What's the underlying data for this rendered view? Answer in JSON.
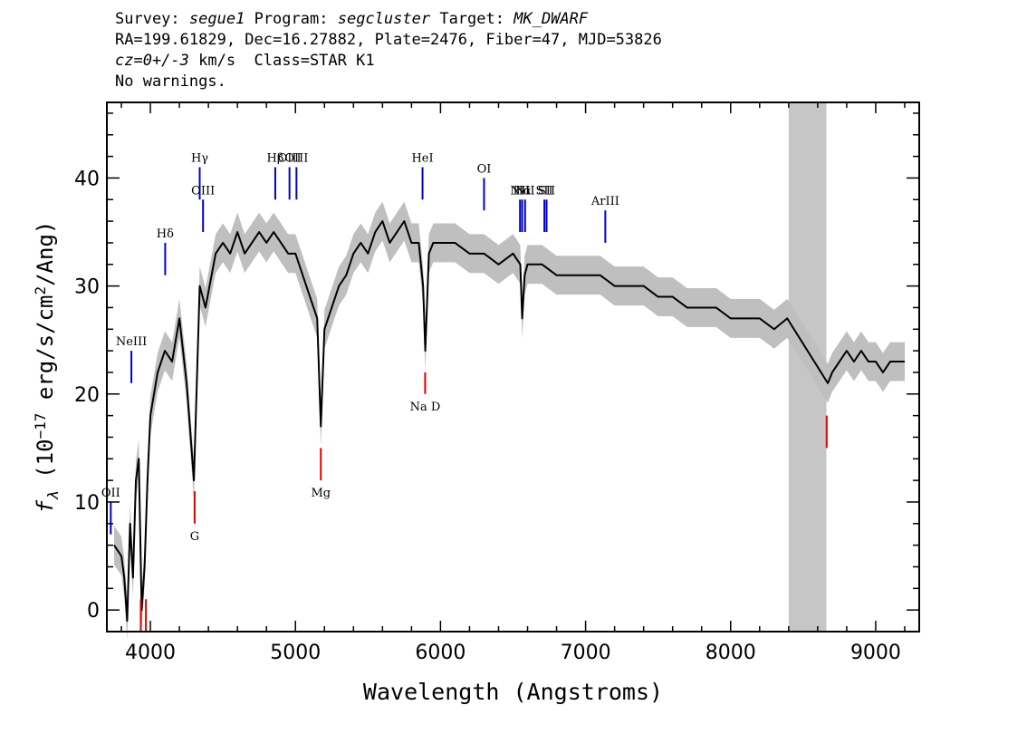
{
  "header": {
    "survey_label": "Survey:",
    "survey": "segue1",
    "program_label": "Program:",
    "program": "segcluster",
    "target_label": "Target:",
    "target": "MK_DWARF",
    "line2": "RA=199.61829, Dec=16.27882, Plate=2476, Fiber=47, MJD=53826",
    "cz": "cz=0+/-3",
    "line3_rest": " km/s  Class=STAR K1",
    "line4": "No warnings."
  },
  "chart_data": {
    "type": "line",
    "xlabel": "Wavelength (Angstroms)",
    "ylabel": "f_λ (10^-17 erg/s/cm^2/Ang)",
    "xlim": [
      3700,
      9300
    ],
    "ylim": [
      -2,
      47
    ],
    "xticks": [
      4000,
      5000,
      6000,
      7000,
      8000,
      9000
    ],
    "yticks": [
      0,
      10,
      20,
      30,
      40
    ],
    "masked_region": [
      8400,
      8660
    ],
    "colors": {
      "flux": "#000000",
      "error_band": "#bfbfbf",
      "mask": "#c6c6c6",
      "emission": "#0000cc",
      "absorption": "#dd0000"
    },
    "series": [
      {
        "x": [
          3750,
          3800,
          3820,
          3840,
          3860,
          3880,
          3900,
          3920,
          3940,
          3960,
          3980,
          4000,
          4050,
          4100,
          4150,
          4200,
          4250,
          4300,
          4340,
          4380,
          4450,
          4500,
          4550,
          4600,
          4650,
          4700,
          4750,
          4800,
          4850,
          4900,
          4950,
          5000,
          5050,
          5100,
          5150,
          5175,
          5200,
          5250,
          5300,
          5350,
          5400,
          5450,
          5500,
          5550,
          5600,
          5650,
          5700,
          5750,
          5800,
          5850,
          5880,
          5895,
          5920,
          5950,
          6000,
          6100,
          6200,
          6300,
          6400,
          6500,
          6550,
          6563,
          6580,
          6600,
          6700,
          6800,
          6900,
          7000,
          7100,
          7200,
          7300,
          7400,
          7500,
          7600,
          7700,
          7800,
          7900,
          8000,
          8100,
          8200,
          8300,
          8390,
          8670,
          8700,
          8750,
          8800,
          8850,
          8900,
          8950,
          9000,
          9050,
          9100,
          9150,
          9200
        ],
        "y": [
          6,
          5,
          3,
          -1,
          8,
          3,
          12,
          14,
          0,
          4,
          12,
          18,
          22,
          24,
          23,
          27,
          21,
          12,
          30,
          28,
          33,
          34,
          33,
          35,
          33,
          34,
          35,
          34,
          35,
          34,
          33,
          33,
          31,
          29,
          27,
          17,
          26,
          28,
          30,
          31,
          33,
          34,
          33,
          35,
          36,
          34,
          35,
          36,
          34,
          34,
          30,
          24,
          33,
          34,
          34,
          34,
          33,
          33,
          32,
          33,
          32,
          27,
          31,
          32,
          32,
          31,
          31,
          31,
          31,
          30,
          30,
          30,
          29,
          29,
          28,
          28,
          28,
          27,
          27,
          27,
          26,
          27,
          21,
          22,
          23,
          24,
          23,
          24,
          23,
          23,
          22,
          23,
          23,
          23
        ]
      }
    ],
    "emission_lines": [
      {
        "label": "OII",
        "x": 3727,
        "y": [
          7,
          10
        ]
      },
      {
        "label": "NeIII",
        "x": 3869,
        "y": [
          21,
          24
        ]
      },
      {
        "label": "Hδ",
        "x": 4102,
        "y": [
          31,
          34
        ]
      },
      {
        "label": "Hγ",
        "x": 4340,
        "y": [
          38,
          41
        ]
      },
      {
        "label": "OIII",
        "x": 4363,
        "y": [
          35,
          38
        ]
      },
      {
        "label": "Hβ",
        "x": 4861,
        "y": [
          38,
          41
        ]
      },
      {
        "label": "OIII",
        "x": 4959,
        "y": [
          38,
          41
        ]
      },
      {
        "label": "OIII",
        "x": 5007,
        "y": [
          38,
          41
        ]
      },
      {
        "label": "HeI",
        "x": 5876,
        "y": [
          38,
          41
        ]
      },
      {
        "label": "OI",
        "x": 6300,
        "y": [
          37,
          40
        ]
      },
      {
        "label": "NII",
        "x": 6548,
        "y": [
          35,
          38
        ]
      },
      {
        "label": "Hα",
        "x": 6563,
        "y": [
          35,
          38
        ]
      },
      {
        "label": "NII",
        "x": 6583,
        "y": [
          35,
          38
        ]
      },
      {
        "label": "SII",
        "x": 6716,
        "y": [
          35,
          38
        ]
      },
      {
        "label": "SII",
        "x": 6731,
        "y": [
          35,
          38
        ]
      },
      {
        "label": "ArIII",
        "x": 7136,
        "y": [
          34,
          37
        ]
      }
    ],
    "absorption_lines": [
      {
        "label": "",
        "x": 3934,
        "y": [
          -2,
          1
        ]
      },
      {
        "label": "",
        "x": 3969,
        "y": [
          -2,
          1
        ]
      },
      {
        "label": "G",
        "x": 4305,
        "y": [
          8,
          11
        ]
      },
      {
        "label": "Mg",
        "x": 5175,
        "y": [
          12,
          15
        ]
      },
      {
        "label": "Na D",
        "x": 5894,
        "y": [
          20,
          22
        ]
      },
      {
        "label": "",
        "x": 8662,
        "y": [
          15,
          18
        ]
      }
    ]
  }
}
